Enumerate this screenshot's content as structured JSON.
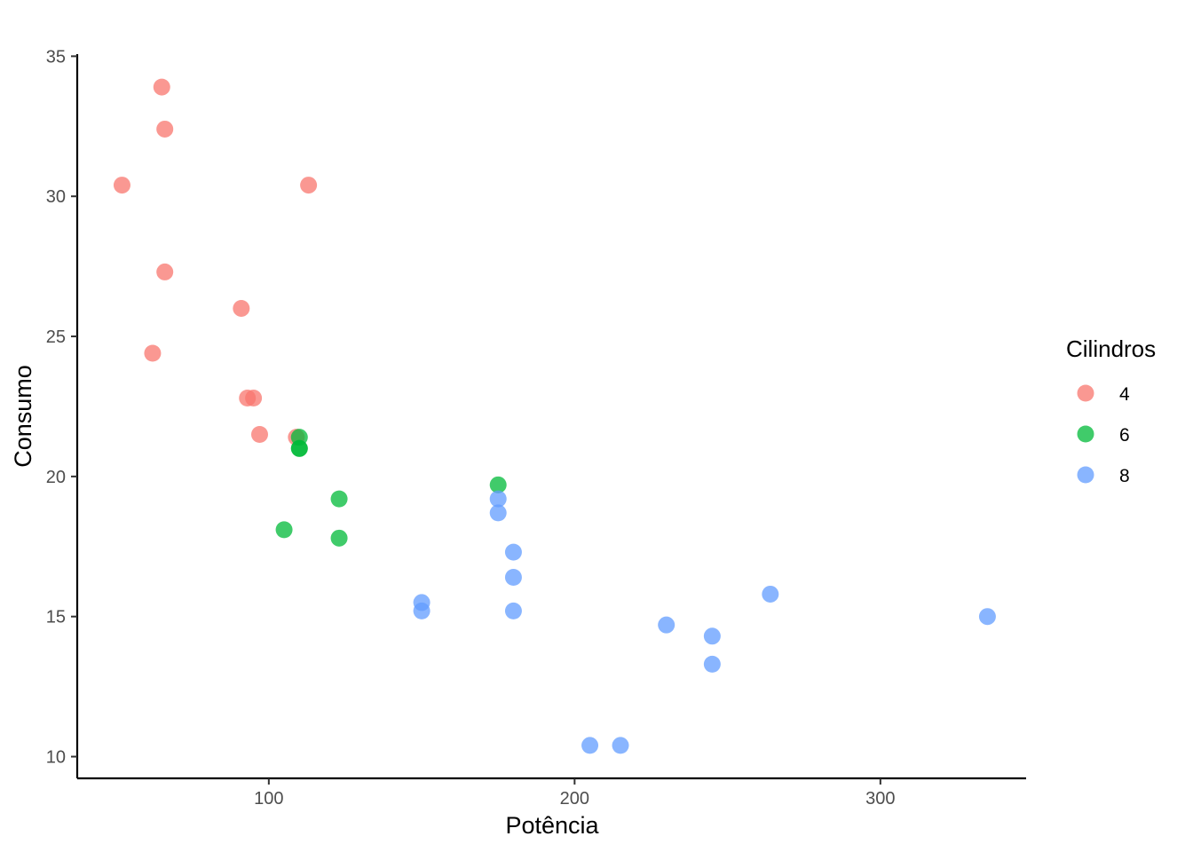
{
  "chart_data": {
    "type": "scatter",
    "title": "",
    "xlabel": "Potência",
    "ylabel": "Consumo",
    "xlim": [
      37.35,
      347.65
    ],
    "ylim": [
      9.225,
      35.075
    ],
    "x_ticks": [
      "100",
      "200",
      "300"
    ],
    "y_ticks": [
      "10",
      "15",
      "20",
      "25",
      "30",
      "35"
    ],
    "grid": false,
    "legend": {
      "title": "Cilindros",
      "placement": "right"
    },
    "series": [
      {
        "name": "4",
        "color": "#F8766D",
        "points": [
          {
            "x": 93,
            "y": 22.8
          },
          {
            "x": 62,
            "y": 24.4
          },
          {
            "x": 95,
            "y": 22.8
          },
          {
            "x": 66,
            "y": 32.4
          },
          {
            "x": 52,
            "y": 30.4
          },
          {
            "x": 65,
            "y": 33.9
          },
          {
            "x": 97,
            "y": 21.5
          },
          {
            "x": 66,
            "y": 27.3
          },
          {
            "x": 91,
            "y": 26.0
          },
          {
            "x": 113,
            "y": 30.4
          },
          {
            "x": 109,
            "y": 21.4
          }
        ]
      },
      {
        "name": "6",
        "color": "#00BA38",
        "points": [
          {
            "x": 110,
            "y": 21.0
          },
          {
            "x": 110,
            "y": 21.0
          },
          {
            "x": 110,
            "y": 21.4
          },
          {
            "x": 105,
            "y": 18.1
          },
          {
            "x": 123,
            "y": 19.2
          },
          {
            "x": 123,
            "y": 17.8
          },
          {
            "x": 175,
            "y": 19.7
          }
        ]
      },
      {
        "name": "8",
        "color": "#619CFF",
        "points": [
          {
            "x": 175,
            "y": 18.7
          },
          {
            "x": 245,
            "y": 14.3
          },
          {
            "x": 180,
            "y": 16.4
          },
          {
            "x": 180,
            "y": 17.3
          },
          {
            "x": 180,
            "y": 15.2
          },
          {
            "x": 205,
            "y": 10.4
          },
          {
            "x": 215,
            "y": 10.4
          },
          {
            "x": 230,
            "y": 14.7
          },
          {
            "x": 150,
            "y": 15.5
          },
          {
            "x": 150,
            "y": 15.2
          },
          {
            "x": 245,
            "y": 13.3
          },
          {
            "x": 175,
            "y": 19.2
          },
          {
            "x": 264,
            "y": 15.8
          },
          {
            "x": 335,
            "y": 15.0
          }
        ]
      }
    ]
  }
}
